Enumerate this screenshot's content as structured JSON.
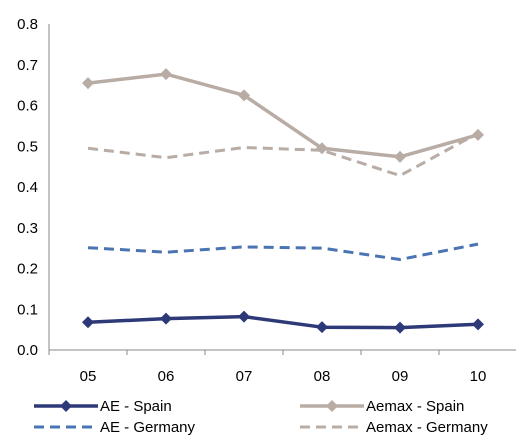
{
  "chart_data": {
    "type": "line",
    "categories": [
      "05",
      "06",
      "07",
      "08",
      "09",
      "10"
    ],
    "ylim": [
      0.0,
      0.8
    ],
    "yticks": [
      "0.0",
      "0.1",
      "0.2",
      "0.3",
      "0.4",
      "0.5",
      "0.6",
      "0.7",
      "0.8"
    ],
    "grid": false,
    "legend_position": "bottom",
    "series": [
      {
        "name": "AE - Spain",
        "values": [
          0.068,
          0.077,
          0.082,
          0.056,
          0.055,
          0.063
        ],
        "color": "#2e3a78",
        "style": "solid",
        "marker": "diamond"
      },
      {
        "name": "Aemax - Spain",
        "values": [
          0.655,
          0.677,
          0.625,
          0.495,
          0.474,
          0.528
        ],
        "color": "#b8aca5",
        "style": "solid",
        "marker": "diamond"
      },
      {
        "name": "AE - Germany",
        "values": [
          0.251,
          0.24,
          0.253,
          0.25,
          0.222,
          0.26
        ],
        "color": "#4a74b4",
        "style": "dashed",
        "marker": "none"
      },
      {
        "name": "Aemax - Germany",
        "values": [
          0.495,
          0.472,
          0.497,
          0.49,
          0.428,
          0.532
        ],
        "color": "#b8aca5",
        "style": "dashed",
        "marker": "none"
      }
    ]
  }
}
